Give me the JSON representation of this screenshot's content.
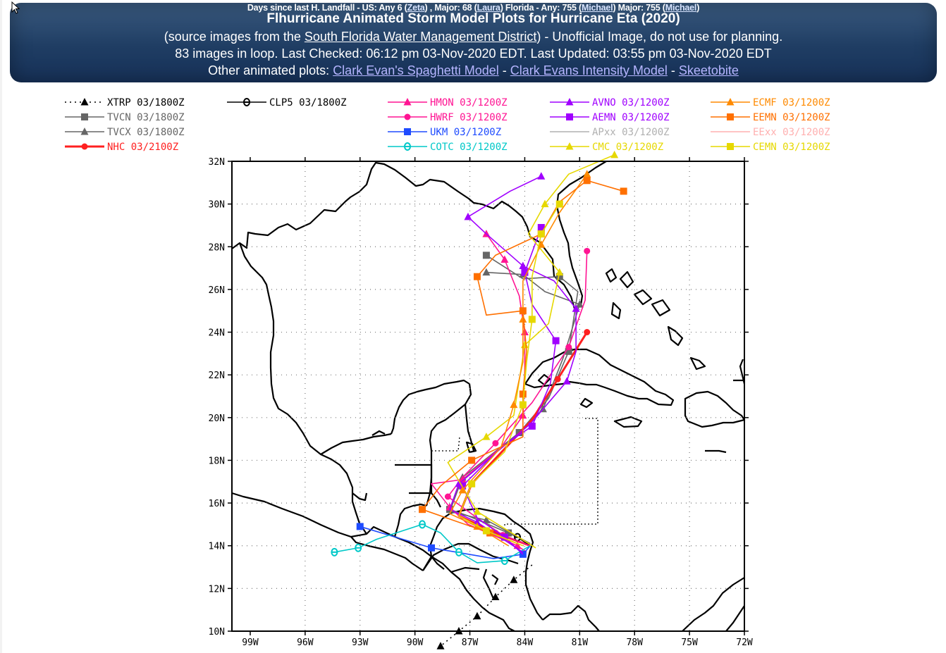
{
  "banner": {
    "topline": {
      "prefix": "Days since last H. Landfall - US: Any 6 (",
      "zeta": "Zeta",
      "mid1": ") , Major: 68 (",
      "laura": "Laura",
      "mid2": ") Florida - Any: 755 (",
      "michael1": "Michael",
      "mid3": ") Major: 755 (",
      "michael2": "Michael",
      "end": ")"
    },
    "title": "Flhurricane Animated Storm Model Plots for Hurricane Eta (2020)",
    "source_prefix": "(source images from the ",
    "source_link": "South Florida Water Management District",
    "source_suffix": ") - Unofficial Image, do not use for planning.",
    "status": "83 images in loop. Last Checked: 06:12 pm 03-Nov-2020 EDT. Last Updated: 03:55 pm 03-Nov-2020 EDT",
    "other_prefix": "Other animated plots: ",
    "link_spaghetti": "Clark Evan's Spaghetti Model",
    "sep1": " - ",
    "link_intensity": "Clark Evans Intensity Model",
    "sep2": " - ",
    "link_skeeto": "Skeetobite"
  },
  "chart_data": {
    "type": "line",
    "xlim": [
      -100,
      -72
    ],
    "ylim": [
      10,
      32
    ],
    "x_ticks": [
      -99,
      -96,
      -93,
      -90,
      -87,
      -84,
      -81,
      -78,
      -75,
      -72
    ],
    "x_tick_labels": [
      "99W",
      "96W",
      "93W",
      "90W",
      "87W",
      "84W",
      "81W",
      "78W",
      "75W",
      "72W"
    ],
    "y_ticks": [
      10,
      12,
      14,
      16,
      18,
      20,
      22,
      24,
      26,
      28,
      30,
      32
    ],
    "y_tick_labels": [
      "10N",
      "12N",
      "14N",
      "16N",
      "18N",
      "20N",
      "22N",
      "24N",
      "26N",
      "28N",
      "30N",
      "32N"
    ],
    "legend_placement": "top",
    "series": [
      {
        "name": "XTRP",
        "time": "03/1800Z",
        "color": "#000000",
        "marker": "triangle",
        "dashed": true,
        "points": [
          [
            -83.6,
            13.1
          ],
          [
            -84.6,
            12.4
          ],
          [
            -85.6,
            11.6
          ],
          [
            -86.6,
            10.7
          ],
          [
            -87.6,
            10.0
          ],
          [
            -88.6,
            9.3
          ]
        ]
      },
      {
        "name": "TVCN",
        "time": "03/1800Z",
        "color": "#666666",
        "marker": "square",
        "points": [
          [
            -83.7,
            14.1
          ],
          [
            -84.9,
            14.6
          ],
          [
            -87.1,
            15.4
          ],
          [
            -88.1,
            15.7
          ],
          [
            -87.6,
            16.9
          ],
          [
            -84.3,
            19.3
          ],
          [
            -82.7,
            20.9
          ],
          [
            -81.6,
            23.1
          ],
          [
            -81.1,
            25.9
          ],
          [
            -82.1,
            26.6
          ],
          [
            -84.1,
            26.5
          ],
          [
            -86.1,
            27.6
          ]
        ]
      },
      {
        "name": "TVCX",
        "time": "03/1800Z",
        "color": "#666666",
        "marker": "triangle",
        "points": [
          [
            -83.7,
            14.1
          ],
          [
            -86.1,
            15.2
          ],
          [
            -88.1,
            15.6
          ],
          [
            -87.4,
            17.2
          ],
          [
            -84.3,
            19.3
          ],
          [
            -83.0,
            20.4
          ],
          [
            -81.9,
            22.8
          ],
          [
            -81.0,
            25.3
          ],
          [
            -82.9,
            25.9
          ],
          [
            -84.1,
            26.7
          ],
          [
            -86.1,
            26.8
          ]
        ]
      },
      {
        "name": "NHC",
        "time": "03/2100Z",
        "color": "#ff2020",
        "marker": "circle",
        "points": [
          [
            -83.7,
            14.0
          ],
          [
            -85.6,
            14.6
          ],
          [
            -87.6,
            15.4
          ],
          [
            -86.9,
            16.9
          ],
          [
            -83.6,
            19.9
          ],
          [
            -82.2,
            21.8
          ],
          [
            -80.6,
            24.0
          ]
        ]
      },
      {
        "name": "CLP5",
        "time": "03/1800Z",
        "color": "#000000",
        "marker": "theta",
        "points": [
          [
            -83.7,
            14.0
          ],
          [
            -84.4,
            14.4
          ]
        ]
      },
      {
        "name": "HMON",
        "time": "03/1200Z",
        "color": "#ff1493",
        "marker": "triangle",
        "points": [
          [
            -83.9,
            13.7
          ],
          [
            -84.4,
            14.0
          ],
          [
            -87.1,
            15.0
          ],
          [
            -88.1,
            15.8
          ],
          [
            -89.1,
            16.9
          ],
          [
            -87.4,
            17.1
          ],
          [
            -85.3,
            18.6
          ],
          [
            -84.1,
            20.1
          ],
          [
            -84.0,
            22.0
          ],
          [
            -84.0,
            24.0
          ],
          [
            -84.3,
            25.7
          ],
          [
            -85.1,
            27.4
          ],
          [
            -86.1,
            28.6
          ]
        ]
      },
      {
        "name": "HWRF",
        "time": "03/1200Z",
        "color": "#ff1493",
        "marker": "circle",
        "points": [
          [
            -83.7,
            14.0
          ],
          [
            -85.2,
            14.5
          ],
          [
            -86.6,
            15.3
          ],
          [
            -88.2,
            16.3
          ],
          [
            -87.4,
            17.2
          ],
          [
            -85.6,
            18.8
          ],
          [
            -83.6,
            20.7
          ],
          [
            -81.6,
            23.3
          ],
          [
            -80.7,
            25.5
          ],
          [
            -80.6,
            27.8
          ]
        ]
      },
      {
        "name": "UKM",
        "time": "03/1200Z",
        "color": "#1e4bff",
        "marker": "square",
        "points": [
          [
            -83.7,
            14.0
          ],
          [
            -84.1,
            13.6
          ],
          [
            -85.7,
            13.4
          ],
          [
            -89.1,
            13.9
          ],
          [
            -93.0,
            14.9
          ]
        ]
      },
      {
        "name": "COTC",
        "time": "03/1200Z",
        "color": "#00c8c8",
        "marker": "theta",
        "points": [
          [
            -83.7,
            14.0
          ],
          [
            -85.1,
            13.3
          ],
          [
            -86.6,
            13.2
          ],
          [
            -87.6,
            13.7
          ],
          [
            -88.6,
            14.6
          ],
          [
            -89.6,
            15.0
          ],
          [
            -92.1,
            14.3
          ],
          [
            -93.1,
            13.9
          ],
          [
            -94.4,
            13.7
          ]
        ]
      },
      {
        "name": "AVNO",
        "time": "03/1200Z",
        "color": "#a000ff",
        "marker": "triangle",
        "points": [
          [
            -84.1,
            13.7
          ],
          [
            -86.6,
            15.1
          ],
          [
            -88.1,
            15.7
          ],
          [
            -87.6,
            16.9
          ],
          [
            -83.7,
            19.7
          ],
          [
            -81.7,
            21.7
          ],
          [
            -81.2,
            23.1
          ],
          [
            -81.2,
            25.1
          ],
          [
            -82.4,
            26.4
          ],
          [
            -84.1,
            27.1
          ],
          [
            -86.1,
            28.6
          ],
          [
            -87.1,
            29.4
          ],
          [
            -84.8,
            30.6
          ],
          [
            -83.1,
            31.3
          ]
        ]
      },
      {
        "name": "AEMN",
        "time": "03/1200Z",
        "color": "#a000ff",
        "marker": "square",
        "points": [
          [
            -84.1,
            13.6
          ],
          [
            -85.1,
            14.4
          ],
          [
            -86.6,
            15.3
          ],
          [
            -87.4,
            16.8
          ],
          [
            -85.3,
            18.6
          ],
          [
            -83.6,
            19.6
          ],
          [
            -82.6,
            21.6
          ],
          [
            -82.3,
            23.6
          ],
          [
            -83.6,
            25.3
          ],
          [
            -84.0,
            26.8
          ],
          [
            -83.1,
            28.9
          ]
        ]
      },
      {
        "name": "APxx",
        "time": "03/1200Z",
        "color": "#b0b0b0",
        "marker": "none",
        "points": []
      },
      {
        "name": "CMC",
        "time": "03/1200Z",
        "color": "#e6d800",
        "marker": "triangle",
        "points": [
          [
            -83.4,
            13.9
          ],
          [
            -86.6,
            15.6
          ],
          [
            -88.2,
            17.9
          ],
          [
            -86.1,
            19.1
          ],
          [
            -84.6,
            20.1
          ],
          [
            -84.0,
            23.4
          ],
          [
            -82.7,
            24.4
          ],
          [
            -82.1,
            26.8
          ],
          [
            -83.8,
            28.6
          ],
          [
            -82.9,
            30.0
          ],
          [
            -81.6,
            31.4
          ],
          [
            -79.1,
            32.3
          ]
        ]
      },
      {
        "name": "ECMF",
        "time": "03/1200Z",
        "color": "#ff8a00",
        "marker": "triangle",
        "points": [
          [
            -84.9,
            14.0
          ],
          [
            -86.6,
            14.9
          ],
          [
            -88.1,
            15.5
          ],
          [
            -87.4,
            16.6
          ],
          [
            -85.3,
            18.6
          ],
          [
            -84.6,
            20.6
          ],
          [
            -84.1,
            22.6
          ],
          [
            -84.1,
            24.6
          ],
          [
            -84.1,
            26.4
          ],
          [
            -83.1,
            28.1
          ],
          [
            -82.1,
            29.6
          ],
          [
            -80.6,
            31.4
          ]
        ]
      },
      {
        "name": "EEMN",
        "time": "03/1200Z",
        "color": "#ff7000",
        "marker": "square",
        "points": [
          [
            -84.4,
            14.1
          ],
          [
            -85.9,
            14.6
          ],
          [
            -87.6,
            15.1
          ],
          [
            -89.6,
            15.7
          ],
          [
            -88.6,
            16.8
          ],
          [
            -86.9,
            18.0
          ],
          [
            -84.1,
            19.1
          ],
          [
            -84.1,
            21.1
          ],
          [
            -83.9,
            23.1
          ],
          [
            -84.1,
            25.0
          ],
          [
            -86.1,
            24.8
          ],
          [
            -86.6,
            26.6
          ],
          [
            -85.6,
            27.6
          ],
          [
            -83.1,
            28.6
          ],
          [
            -82.1,
            30.1
          ],
          [
            -80.6,
            31.1
          ],
          [
            -78.6,
            30.6
          ]
        ]
      },
      {
        "name": "EExx",
        "time": "03/1200Z",
        "color": "#ffb0b0",
        "marker": "none",
        "points": []
      },
      {
        "name": "CEMN",
        "time": "03/1200Z",
        "color": "#e6d800",
        "marker": "square",
        "points": [
          [
            -84.1,
            14.0
          ],
          [
            -86.1,
            14.7
          ],
          [
            -87.6,
            15.4
          ],
          [
            -86.9,
            16.9
          ],
          [
            -85.1,
            18.4
          ],
          [
            -84.1,
            20.6
          ],
          [
            -83.9,
            22.6
          ],
          [
            -83.6,
            24.6
          ],
          [
            -83.6,
            26.6
          ],
          [
            -83.1,
            28.6
          ],
          [
            -82.1,
            30.0
          ]
        ]
      }
    ]
  }
}
